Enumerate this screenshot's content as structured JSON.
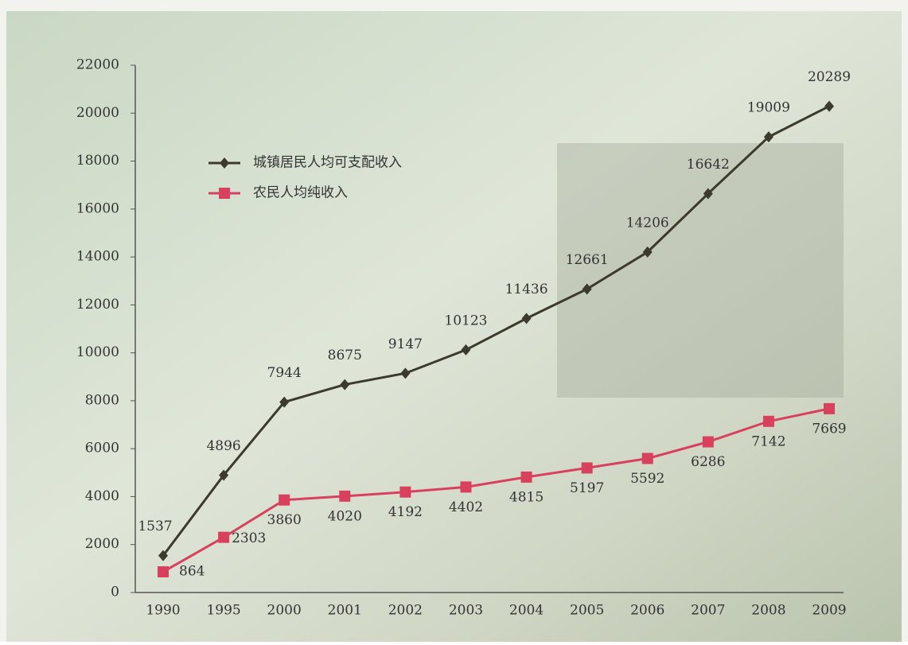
{
  "chart_data": {
    "type": "line",
    "categories": [
      "1990",
      "1995",
      "2000",
      "2001",
      "2002",
      "2003",
      "2004",
      "2005",
      "2006",
      "2007",
      "2008",
      "2009"
    ],
    "series": [
      {
        "name": "城镇居民人均可支配收入",
        "color": "#3b3a2c",
        "marker": "diamond",
        "values": [
          1537,
          4896,
          7944,
          8675,
          9147,
          10123,
          11436,
          12661,
          14206,
          16642,
          19009,
          20289
        ]
      },
      {
        "name": "农民人均纯收入",
        "color": "#d9405e",
        "marker": "square",
        "values": [
          864,
          2303,
          3860,
          4020,
          4192,
          4402,
          4815,
          5197,
          5592,
          6286,
          7142,
          7669
        ]
      }
    ],
    "ylim": [
      0,
      22000
    ],
    "yticks": [
      0,
      2000,
      4000,
      6000,
      8000,
      10000,
      12000,
      14000,
      16000,
      18000,
      20000,
      22000
    ]
  }
}
